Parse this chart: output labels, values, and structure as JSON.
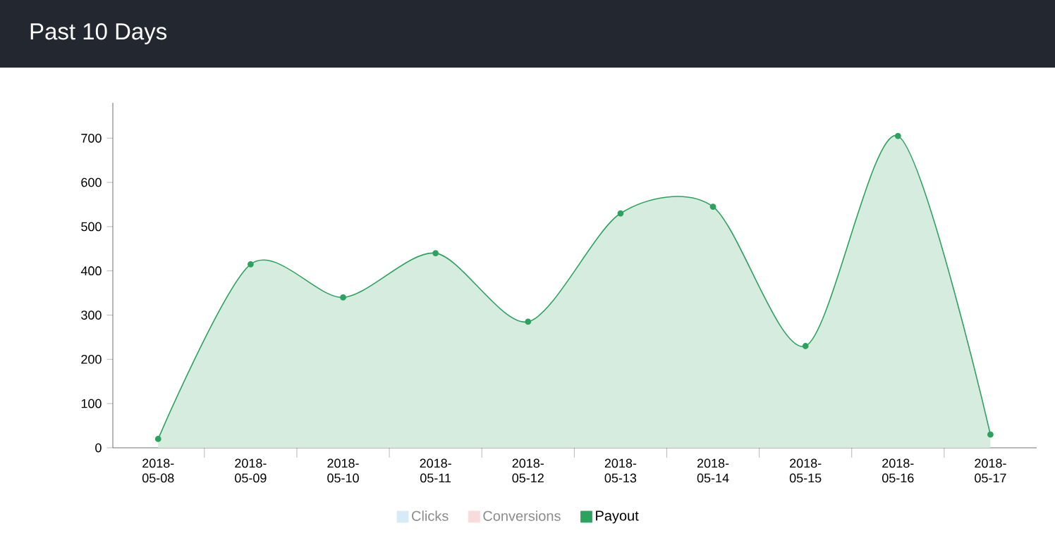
{
  "chart_data": {
    "type": "area",
    "title": "Past 10 Days",
    "categories": [
      "2018-05-08",
      "2018-05-09",
      "2018-05-10",
      "2018-05-11",
      "2018-05-12",
      "2018-05-13",
      "2018-05-14",
      "2018-05-15",
      "2018-05-16",
      "2018-05-17"
    ],
    "series": [
      {
        "name": "Clicks",
        "color": "#d6ebf8",
        "values": [
          null,
          null,
          null,
          null,
          null,
          null,
          null,
          null,
          null,
          null
        ]
      },
      {
        "name": "Conversions",
        "color": "#f8dcdc",
        "values": [
          null,
          null,
          null,
          null,
          null,
          null,
          null,
          null,
          null,
          null
        ]
      },
      {
        "name": "Payout",
        "color": "#2ca25f",
        "values": [
          20,
          415,
          340,
          440,
          285,
          530,
          545,
          230,
          705,
          30
        ]
      }
    ],
    "ylim": [
      0,
      780
    ],
    "yticks": [
      0,
      100,
      200,
      300,
      400,
      500,
      600,
      700
    ],
    "legend": "bottom",
    "marker": "circle"
  }
}
